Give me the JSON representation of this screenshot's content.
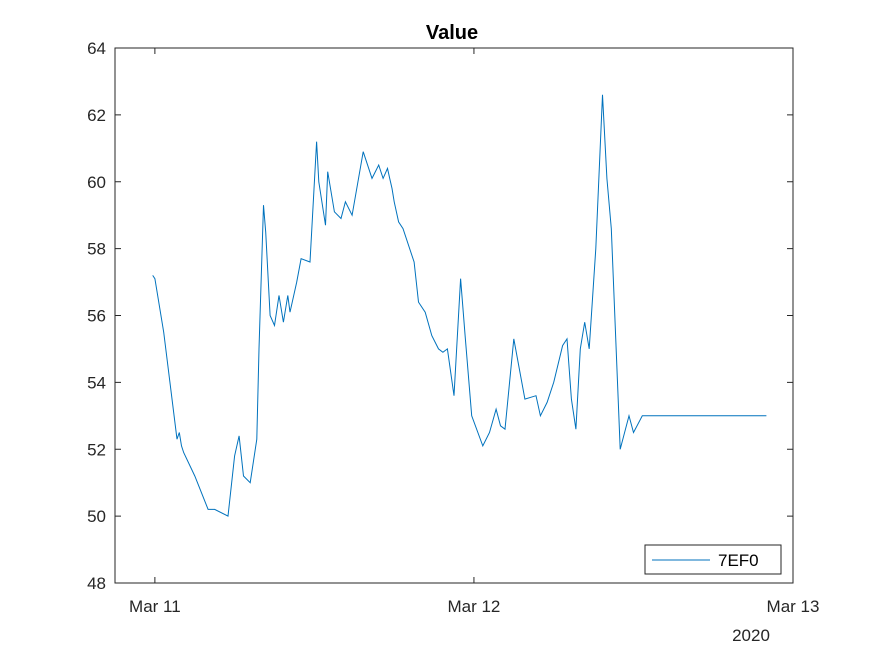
{
  "chart_data": {
    "type": "line",
    "title": "Value",
    "xlabel": "",
    "ylabel": "",
    "x_ticks": [
      "Mar 11",
      "Mar 12",
      "Mar 13"
    ],
    "x_secondary_label": "2020",
    "y_ticks": [
      48,
      50,
      52,
      54,
      56,
      58,
      60,
      62,
      64
    ],
    "ylim": [
      48,
      64
    ],
    "xlim": [
      "2020-03-10 21:00",
      "2020-03-13 00:00"
    ],
    "grid": false,
    "legend_position": "bottom-right",
    "series": [
      {
        "name": "7EF0",
        "color": "#0072BD",
        "x": [
          "2020-03-10 23:50",
          "2020-03-11 00:00",
          "2020-03-11 00:40",
          "2020-03-11 01:40",
          "2020-03-11 01:50",
          "2020-03-11 02:00",
          "2020-03-11 02:10",
          "2020-03-11 03:00",
          "2020-03-11 04:00",
          "2020-03-11 04:30",
          "2020-03-11 05:30",
          "2020-03-11 06:00",
          "2020-03-11 06:20",
          "2020-03-11 06:40",
          "2020-03-11 07:10",
          "2020-03-11 07:40",
          "2020-03-11 07:50",
          "2020-03-11 08:10",
          "2020-03-11 08:20",
          "2020-03-11 08:40",
          "2020-03-11 09:00",
          "2020-03-11 09:20",
          "2020-03-11 09:40",
          "2020-03-11 10:00",
          "2020-03-11 10:10",
          "2020-03-11 10:40",
          "2020-03-11 11:00",
          "2020-03-11 11:40",
          "2020-03-11 12:10",
          "2020-03-11 12:20",
          "2020-03-11 12:50",
          "2020-03-11 13:00",
          "2020-03-11 13:30",
          "2020-03-11 14:00",
          "2020-03-11 14:20",
          "2020-03-11 14:50",
          "2020-03-11 15:40",
          "2020-03-11 16:20",
          "2020-03-11 16:50",
          "2020-03-11 17:10",
          "2020-03-11 17:30",
          "2020-03-11 17:40",
          "2020-03-11 17:50",
          "2020-03-11 18:00",
          "2020-03-11 18:20",
          "2020-03-11 18:40",
          "2020-03-11 19:30",
          "2020-03-11 19:50",
          "2020-03-11 20:20",
          "2020-03-11 20:50",
          "2020-03-11 21:20",
          "2020-03-11 21:40",
          "2020-03-11 22:00",
          "2020-03-11 22:30",
          "2020-03-11 23:00",
          "2020-03-11 23:20",
          "2020-03-11 23:50",
          "2020-03-12 00:40",
          "2020-03-12 01:10",
          "2020-03-12 01:40",
          "2020-03-12 02:00",
          "2020-03-12 02:20",
          "2020-03-12 03:00",
          "2020-03-12 03:50",
          "2020-03-12 04:40",
          "2020-03-12 05:00",
          "2020-03-12 05:30",
          "2020-03-12 06:00",
          "2020-03-12 06:40",
          "2020-03-12 07:00",
          "2020-03-12 07:20",
          "2020-03-12 07:40",
          "2020-03-12 08:00",
          "2020-03-12 08:20",
          "2020-03-12 08:40",
          "2020-03-12 09:10",
          "2020-03-12 09:40",
          "2020-03-12 10:00",
          "2020-03-12 10:20",
          "2020-03-12 11:00",
          "2020-03-12 11:40",
          "2020-03-12 12:00",
          "2020-03-12 12:40",
          "2020-03-12 13:10",
          "2020-03-12 13:40",
          "2020-03-12 14:10",
          "2020-03-12 15:00",
          "2020-03-12 15:30",
          "2020-03-12 16:00",
          "2020-03-12 16:40",
          "2020-03-12 17:10",
          "2020-03-12 17:40",
          "2020-03-12 18:10",
          "2020-03-12 18:40",
          "2020-03-12 19:20",
          "2020-03-12 19:40",
          "2020-03-12 20:00",
          "2020-03-12 20:40",
          "2020-03-12 21:00",
          "2020-03-12 21:40",
          "2020-03-12 21:55",
          "2020-03-12 22:00"
        ],
        "values": [
          57.2,
          57.1,
          55.5,
          52.3,
          52.5,
          52.1,
          51.9,
          51.2,
          50.2,
          50.2,
          50.0,
          51.8,
          52.4,
          51.2,
          51.0,
          52.3,
          55.0,
          59.3,
          58.5,
          56.0,
          55.7,
          56.6,
          55.8,
          56.6,
          56.1,
          57.0,
          57.7,
          57.6,
          61.2,
          60.0,
          58.7,
          60.3,
          59.1,
          58.9,
          59.4,
          59.0,
          60.9,
          60.1,
          60.5,
          60.1,
          60.4,
          60.1,
          59.8,
          59.4,
          58.8,
          58.6,
          57.6,
          56.4,
          56.1,
          55.4,
          55.0,
          54.9,
          55.0,
          53.6,
          57.1,
          55.4,
          53.0,
          52.1,
          52.5,
          53.2,
          52.7,
          52.6,
          55.3,
          53.5,
          53.6,
          53.0,
          53.4,
          54.0,
          55.1,
          55.3,
          53.5,
          52.6,
          55.0,
          55.8,
          55.0,
          58.0,
          62.6,
          60.1,
          58.6,
          52.0,
          53.0,
          52.5,
          53.0,
          53.0,
          53.0,
          53.0,
          53.0,
          53.0,
          53.0,
          53.0,
          53.0,
          53.0,
          53.0,
          53.0,
          53.0,
          53.0,
          53.0,
          53.0,
          53.0,
          53.0,
          53.0,
          53.0
        ]
      }
    ]
  }
}
